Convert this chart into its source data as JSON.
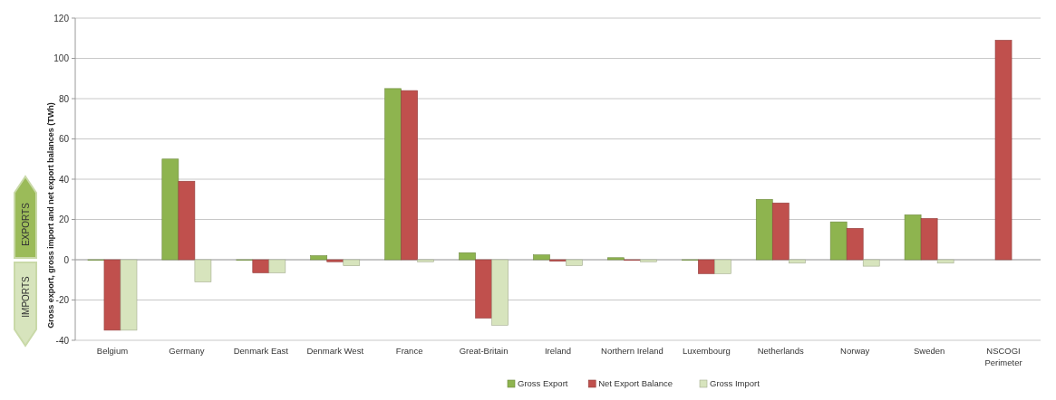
{
  "chart_data": {
    "type": "bar",
    "ylabel": "Gross export, gross import and net export balances (TWh)",
    "categories": [
      "Belgium",
      "Germany",
      "Denmark East",
      "Denmark West",
      "France",
      "Great-Britain",
      "Ireland",
      "Northern Ireland",
      "Luxembourg",
      "Netherlands",
      "Norway",
      "Sweden",
      "NSCOGI\nPerimeter"
    ],
    "series": [
      {
        "name": "Gross Export",
        "color": "#8eb44f",
        "values": [
          0,
          50,
          0,
          2,
          85,
          3.5,
          2.4,
          1,
          0,
          30,
          18.8,
          22.3,
          null
        ]
      },
      {
        "name": "Net Export Balance",
        "color": "#c0504d",
        "values": [
          -35,
          39,
          -6.5,
          -1,
          84,
          -29,
          -0.7,
          -0.3,
          -6.9,
          28.2,
          15.6,
          20.5,
          109
        ]
      },
      {
        "name": "Gross Import",
        "color": "#d7e4bd",
        "values": [
          -35,
          -11,
          -6.5,
          -3,
          -1,
          -32.5,
          -2.9,
          -1,
          -6.9,
          -1.7,
          -3.2,
          -1.7,
          null
        ]
      }
    ],
    "ylim": [
      -40,
      120
    ],
    "yticks": [
      -40,
      -20,
      0,
      20,
      40,
      60,
      80,
      100,
      120
    ],
    "grid": "y",
    "legend": "bottom",
    "annotations": [
      "EXPORTS",
      "IMPORTS"
    ]
  }
}
